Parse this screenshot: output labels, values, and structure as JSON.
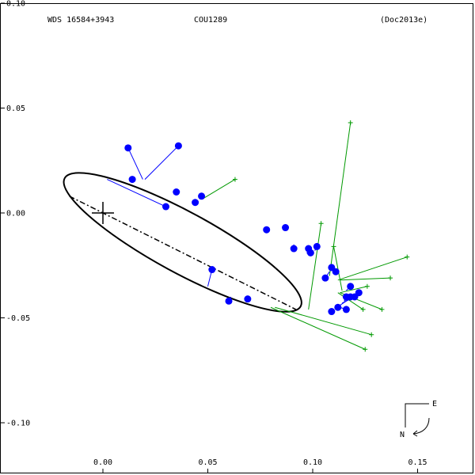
{
  "header": {
    "left": "WDS 16584+3943",
    "center": "COU1289",
    "right": "(Doc2013e)"
  },
  "colors": {
    "frame": "#000000",
    "orbit": "#000000",
    "measure_point": "#0000ff",
    "blue_residual": "#0000ff",
    "green_residual": "#009900"
  },
  "icons": {
    "primary_star": "cross-icon",
    "orientation": "compass-east-north-icon"
  },
  "compass": {
    "east_label": "E",
    "north_label": "N"
  },
  "chart_data": {
    "type": "scatter",
    "title": "",
    "xlabel": "",
    "ylabel": "",
    "xlim": [
      -0.048,
      0.177
    ],
    "ylim": [
      -0.125,
      0.1
    ],
    "x_ticks": [
      {
        "value": 0.0,
        "label": "0.00"
      },
      {
        "value": 0.05,
        "label": "0.05"
      },
      {
        "value": 0.1,
        "label": "0.10"
      },
      {
        "value": 0.15,
        "label": "0.15"
      }
    ],
    "y_ticks": [
      {
        "value": 0.1,
        "label": "0.10"
      },
      {
        "value": 0.05,
        "label": "0.05"
      },
      {
        "value": 0.0,
        "label": "0.00"
      },
      {
        "value": -0.05,
        "label": "-0.05"
      },
      {
        "value": -0.1,
        "label": "-0.10"
      }
    ],
    "primary_star": [
      0.0,
      0.0
    ],
    "orbit_ellipse": {
      "center": [
        0.038,
        -0.014
      ],
      "semi_major": 0.064,
      "semi_minor": 0.0145,
      "angle_deg": -28.5
    },
    "line_of_nodes": [
      [
        -0.016,
        0.008
      ],
      [
        0.092,
        -0.046
      ]
    ],
    "blue_measures": [
      {
        "obs": [
          0.012,
          0.031
        ],
        "orbit": [
          0.019,
          0.016
        ]
      },
      {
        "obs": [
          0.036,
          0.032
        ],
        "orbit": [
          0.02,
          0.016
        ]
      },
      {
        "obs": [
          0.014,
          0.016
        ],
        "orbit": [
          0.013,
          0.016
        ]
      },
      {
        "obs": [
          0.03,
          0.003
        ],
        "orbit": [
          0.002,
          0.016
        ]
      },
      {
        "obs": [
          0.035,
          0.01
        ],
        "orbit": [
          0.034,
          0.011
        ]
      },
      {
        "obs": [
          0.047,
          0.008
        ],
        "orbit": [
          0.046,
          0.007
        ]
      },
      {
        "obs": [
          0.044,
          0.005
        ],
        "orbit": [
          0.045,
          0.006
        ]
      },
      {
        "obs": [
          0.078,
          -0.008
        ],
        "orbit": [
          0.078,
          -0.007
        ]
      },
      {
        "obs": [
          0.087,
          -0.007
        ],
        "orbit": [
          0.087,
          -0.008
        ]
      },
      {
        "obs": [
          0.091,
          -0.017
        ],
        "orbit": [
          0.091,
          -0.015
        ]
      },
      {
        "obs": [
          0.098,
          -0.017
        ],
        "orbit": [
          0.097,
          -0.016
        ]
      },
      {
        "obs": [
          0.099,
          -0.019
        ],
        "orbit": [
          0.097,
          -0.019
        ]
      },
      {
        "obs": [
          0.102,
          -0.016
        ],
        "orbit": [
          0.101,
          -0.018
        ]
      },
      {
        "obs": [
          0.106,
          -0.031
        ],
        "orbit": [
          0.108,
          -0.028
        ]
      },
      {
        "obs": [
          0.109,
          -0.026
        ],
        "orbit": [
          0.11,
          -0.025
        ]
      },
      {
        "obs": [
          0.111,
          -0.028
        ],
        "orbit": [
          0.111,
          -0.028
        ]
      },
      {
        "obs": [
          0.118,
          -0.035
        ],
        "orbit": [
          0.116,
          -0.037
        ]
      },
      {
        "obs": [
          0.116,
          -0.04
        ],
        "orbit": [
          0.115,
          -0.042
        ]
      },
      {
        "obs": [
          0.118,
          -0.04
        ],
        "orbit": [
          0.115,
          -0.042
        ]
      },
      {
        "obs": [
          0.12,
          -0.04
        ],
        "orbit": [
          0.114,
          -0.043
        ]
      },
      {
        "obs": [
          0.122,
          -0.038
        ],
        "orbit": [
          0.113,
          -0.044
        ]
      },
      {
        "obs": [
          0.112,
          -0.045
        ],
        "orbit": [
          0.113,
          -0.045
        ]
      },
      {
        "obs": [
          0.109,
          -0.047
        ],
        "orbit": [
          0.11,
          -0.046
        ]
      },
      {
        "obs": [
          0.116,
          -0.046
        ],
        "orbit": [
          0.113,
          -0.045
        ]
      },
      {
        "obs": [
          0.052,
          -0.027
        ],
        "orbit": [
          0.05,
          -0.035
        ]
      },
      {
        "obs": [
          0.06,
          -0.042
        ],
        "orbit": [
          0.061,
          -0.04
        ]
      },
      {
        "obs": [
          0.069,
          -0.041
        ],
        "orbit": [
          0.07,
          -0.041
        ]
      }
    ],
    "green_measures": [
      {
        "obs": [
          0.063,
          0.016
        ],
        "orbit": [
          0.048,
          0.007
        ]
      },
      {
        "obs": [
          0.118,
          0.043
        ],
        "orbit": [
          0.108,
          -0.03
        ]
      },
      {
        "obs": [
          0.104,
          -0.005
        ],
        "orbit": [
          0.098,
          -0.046
        ]
      },
      {
        "obs": [
          0.145,
          -0.021
        ],
        "orbit": [
          0.112,
          -0.032
        ]
      },
      {
        "obs": [
          0.137,
          -0.031
        ],
        "orbit": [
          0.113,
          -0.032
        ]
      },
      {
        "obs": [
          0.11,
          -0.016
        ],
        "orbit": [
          0.114,
          -0.037
        ]
      },
      {
        "obs": [
          0.126,
          -0.035
        ],
        "orbit": [
          0.113,
          -0.038
        ]
      },
      {
        "obs": [
          0.124,
          -0.046
        ],
        "orbit": [
          0.112,
          -0.038
        ]
      },
      {
        "obs": [
          0.133,
          -0.046
        ],
        "orbit": [
          0.113,
          -0.038
        ]
      },
      {
        "obs": [
          0.128,
          -0.058
        ],
        "orbit": [
          0.082,
          -0.045
        ]
      },
      {
        "obs": [
          0.125,
          -0.065
        ],
        "orbit": [
          0.08,
          -0.045
        ]
      }
    ]
  }
}
